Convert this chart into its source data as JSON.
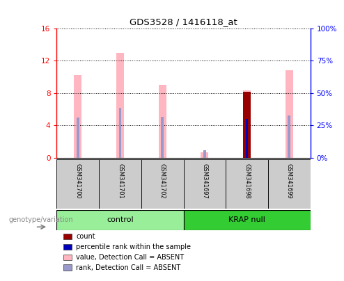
{
  "title": "GDS3528 / 1416118_at",
  "samples": [
    "GSM341700",
    "GSM341701",
    "GSM341702",
    "GSM341697",
    "GSM341698",
    "GSM341699"
  ],
  "ylim_left": [
    0,
    16
  ],
  "ylim_right": [
    0,
    100
  ],
  "yticks_left": [
    0,
    4,
    8,
    12,
    16
  ],
  "ytick_labels_left": [
    "0",
    "4",
    "8",
    "12",
    "16"
  ],
  "yticks_right": [
    0,
    25,
    50,
    75,
    100
  ],
  "ytick_labels_right": [
    "0%",
    "25%",
    "50%",
    "75%",
    "100%"
  ],
  "pink_bars": [
    10.2,
    13.0,
    9.0,
    0.7,
    8.3,
    10.8
  ],
  "lavender_bars": [
    5.0,
    6.2,
    5.1,
    0.9,
    5.0,
    5.2
  ],
  "red_bars": [
    0,
    0,
    0,
    0,
    8.2,
    0
  ],
  "blue_bars": [
    0,
    0,
    0,
    0,
    4.8,
    0
  ],
  "pink_color": "#FFB6C1",
  "lavender_color": "#9999CC",
  "red_color": "#990000",
  "blue_color": "#0000BB",
  "pink_bar_width": 0.18,
  "narrow_bar_width": 0.06,
  "background_color": "#FFFFFF",
  "grid_color": "#000000",
  "legend_items": [
    {
      "label": "count",
      "color": "#990000"
    },
    {
      "label": "percentile rank within the sample",
      "color": "#0000BB"
    },
    {
      "label": "value, Detection Call = ABSENT",
      "color": "#FFB6C1"
    },
    {
      "label": "rank, Detection Call = ABSENT",
      "color": "#9999CC"
    }
  ],
  "group_label": "genotype/variation",
  "group_label_color": "#888888",
  "control_color": "#99EE99",
  "krap_color": "#33CC33",
  "sample_box_color": "#CCCCCC"
}
